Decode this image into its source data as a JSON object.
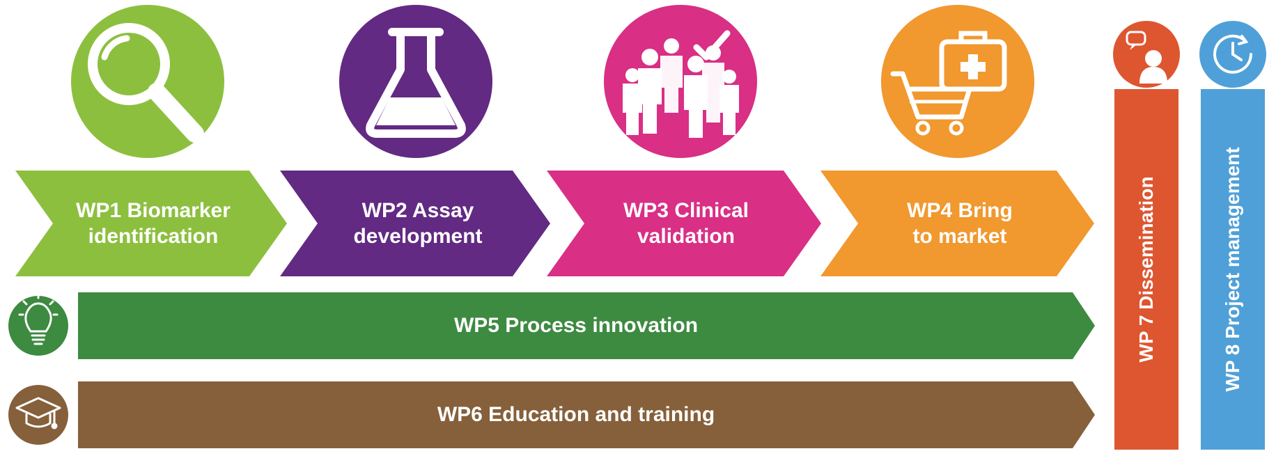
{
  "colors": {
    "wp1": "#8dbf3f",
    "wp2": "#622a83",
    "wp3": "#d92f85",
    "wp4": "#f1982e",
    "wp5": "#3d8a41",
    "wp6": "#85603b",
    "wp7": "#dd5630",
    "wp8": "#4fa0d8"
  },
  "wp1": {
    "line1": "WP1 Biomarker",
    "line2": "identification",
    "icon": "magnifier-icon"
  },
  "wp2": {
    "line1": "WP2 Assay",
    "line2": "development",
    "icon": "flask-icon"
  },
  "wp3": {
    "line1": "WP3 Clinical",
    "line2": "validation",
    "icon": "people-check-icon"
  },
  "wp4": {
    "line1": "WP4 Bring",
    "line2": "to market",
    "icon": "cart-medkit-icon"
  },
  "wp5": {
    "label": "WP5 Process innovation",
    "icon": "lightbulb-icon"
  },
  "wp6": {
    "label": "WP6 Education and training",
    "icon": "graduation-cap-icon"
  },
  "wp7": {
    "label": "WP 7 Dissemination",
    "icon": "speaker-icon"
  },
  "wp8": {
    "label": "WP 8 Project management",
    "icon": "clock-icon"
  }
}
